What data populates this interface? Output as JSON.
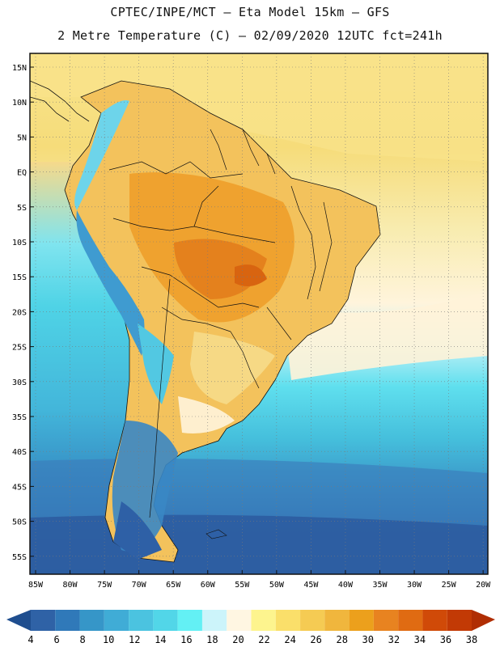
{
  "header": {
    "line1": "CPTEC/INPE/MCT –  Eta Model 15km – GFS",
    "line2": "2 Metre Temperature (C) – 02/09/2020 12UTC fct=241h"
  },
  "map": {
    "lat_labels": [
      "15N",
      "10N",
      "5N",
      "EQ",
      "5S",
      "10S",
      "15S",
      "20S",
      "25S",
      "30S",
      "35S",
      "40S",
      "45S",
      "50S",
      "55S"
    ],
    "lon_labels": [
      "85W",
      "80W",
      "75W",
      "70W",
      "65W",
      "60W",
      "55W",
      "50W",
      "45W",
      "40W",
      "35W",
      "30W",
      "25W",
      "20W"
    ]
  },
  "colorbar": {
    "labels": [
      "4",
      "6",
      "8",
      "10",
      "12",
      "14",
      "16",
      "18",
      "20",
      "22",
      "24",
      "26",
      "28",
      "30",
      "32",
      "34",
      "36",
      "38"
    ],
    "colors": [
      "#2f62a6",
      "#3079b9",
      "#3696c8",
      "#40acd6",
      "#4bc3e0",
      "#52d6e8",
      "#63f0f4",
      "#ccf4fa",
      "#fff6e2",
      "#fdf48e",
      "#fadf6a",
      "#f5cb53",
      "#f0b63d",
      "#eca01c",
      "#e88320",
      "#e06b12",
      "#d04a08",
      "#c23a05"
    ],
    "low_arrow_color": "#1f4e8f",
    "high_arrow_color": "#b02e04"
  }
}
